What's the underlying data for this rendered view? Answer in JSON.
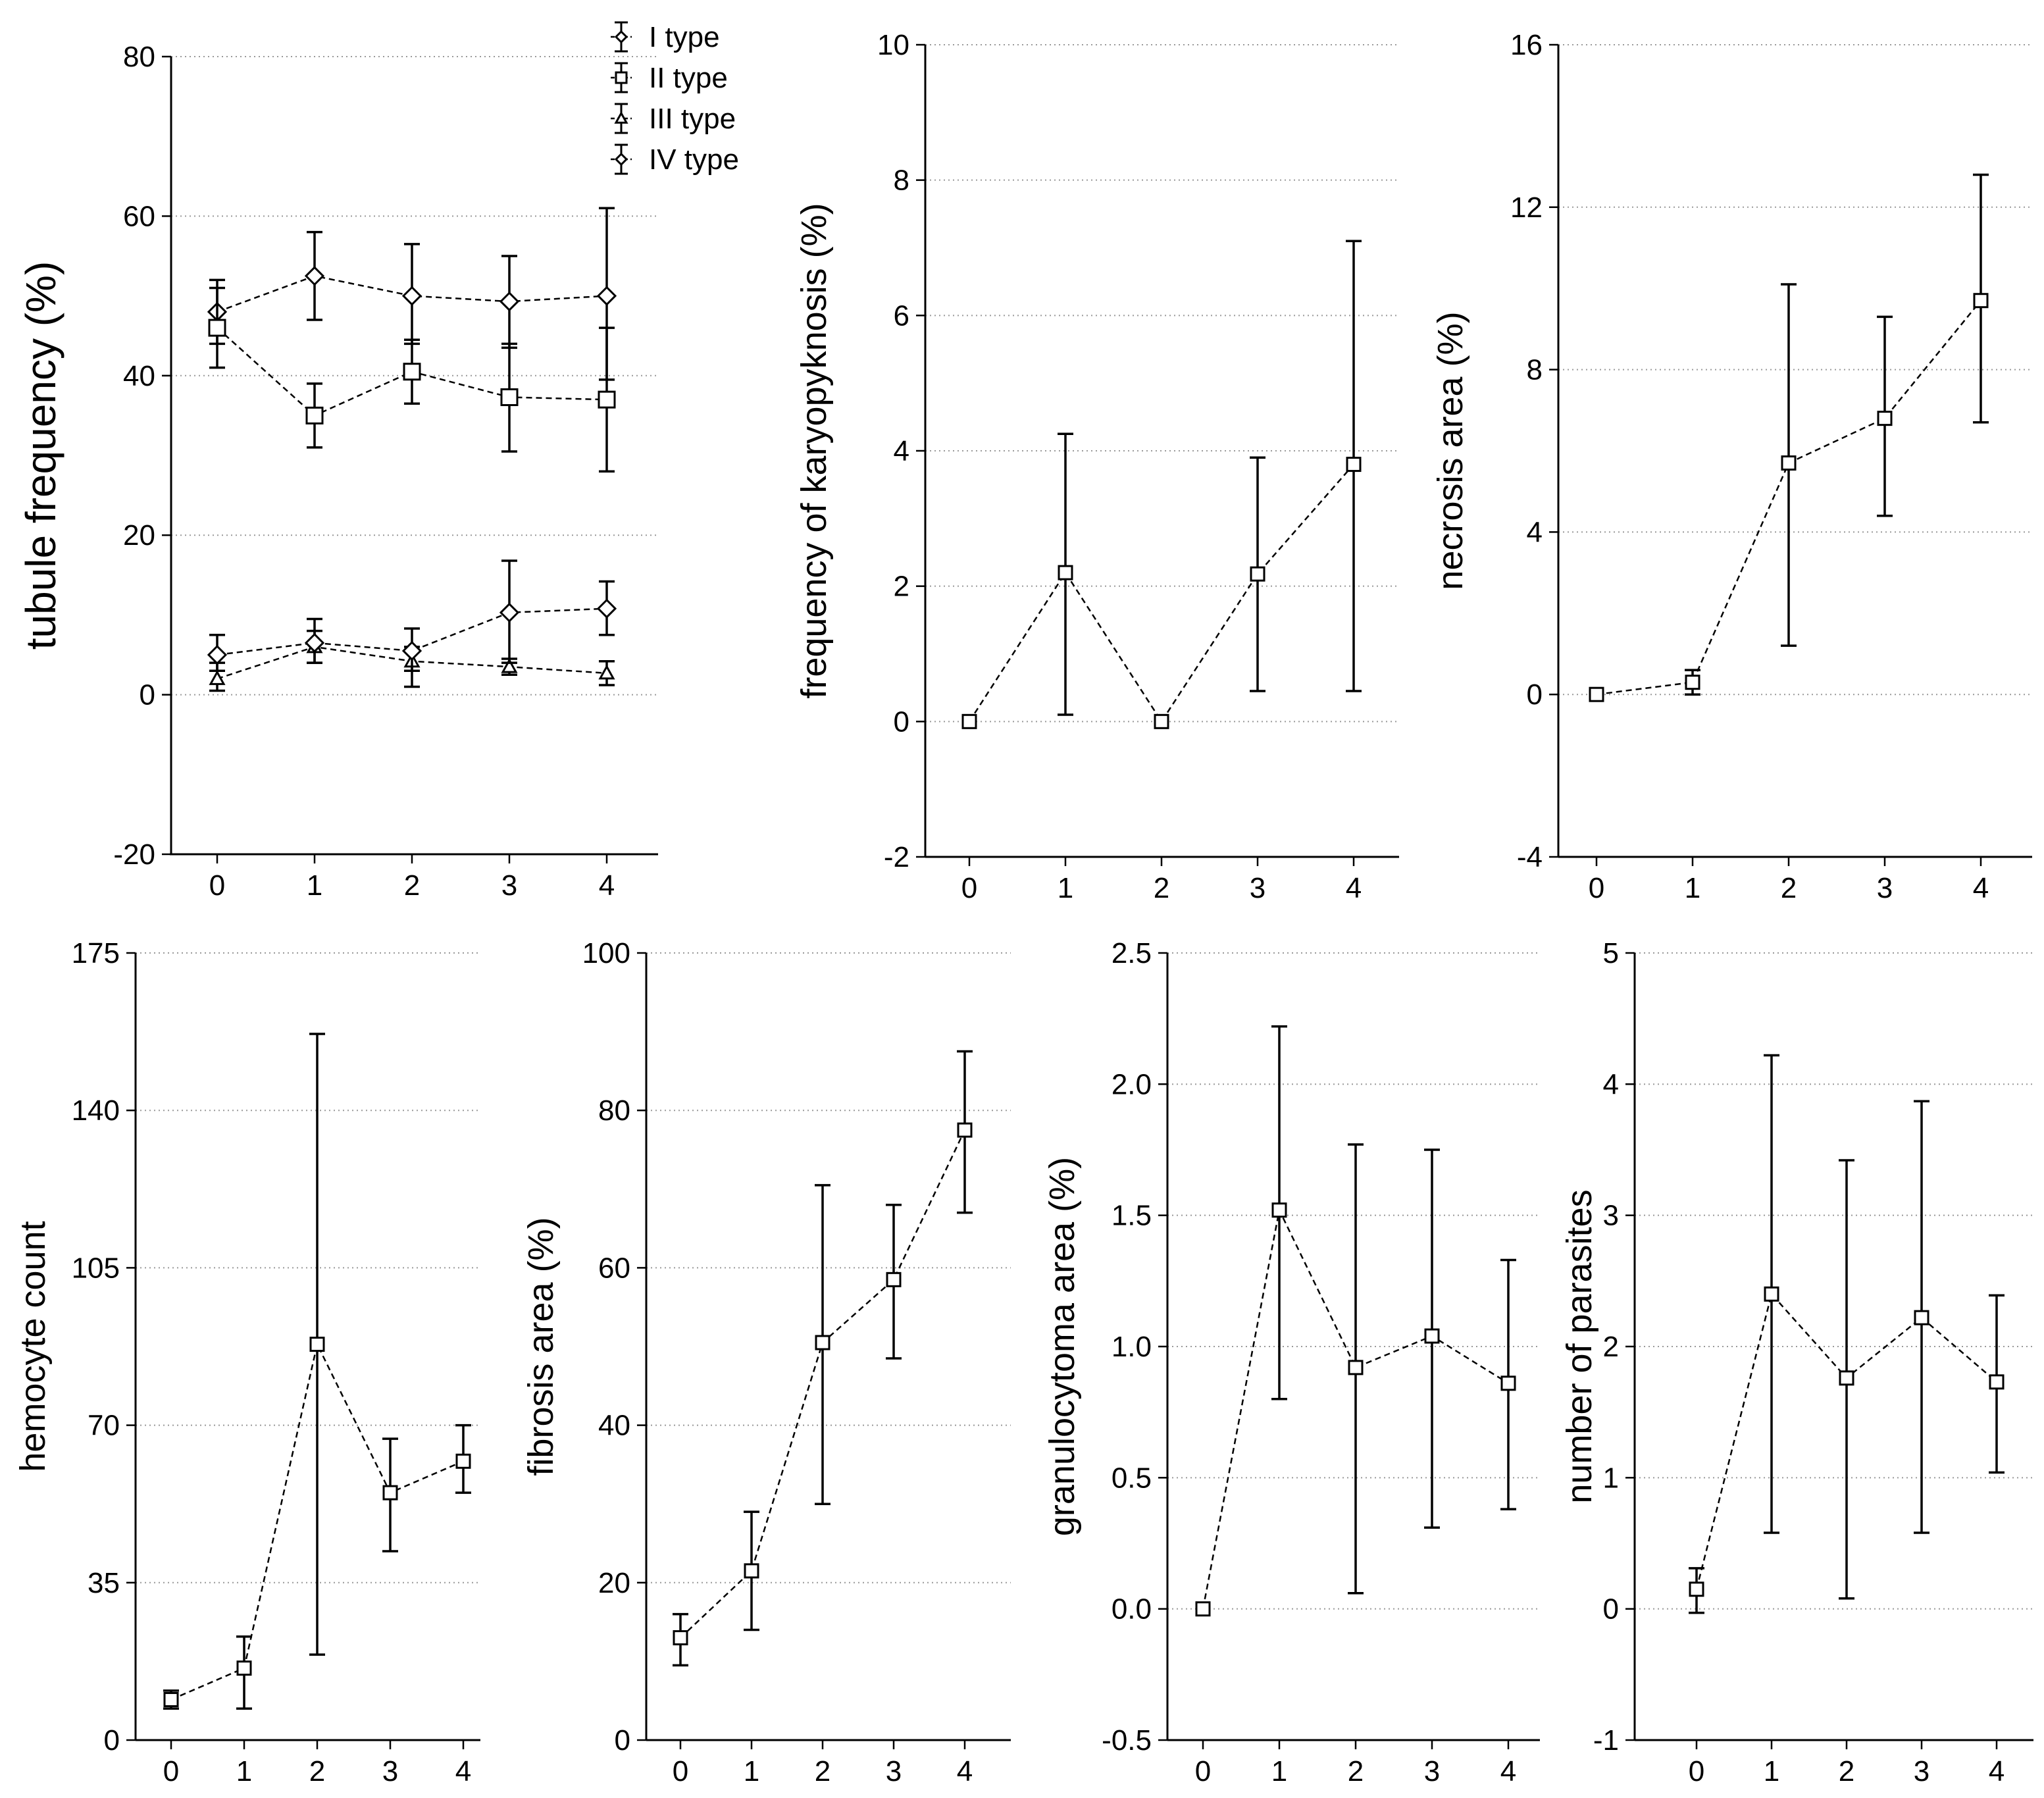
{
  "chart_data": [
    {
      "type": "line",
      "ylabel": "tubule frequency (%)",
      "xlabel": "",
      "categories": [
        "0",
        "1",
        "2",
        "3",
        "4"
      ],
      "ylim": [
        -20,
        80
      ],
      "yticks": [
        "-20",
        "0",
        "20",
        "40",
        "60",
        "80"
      ],
      "grid": "horizontal dotted",
      "legend": [
        "I type",
        "II type",
        "III type",
        "IV type"
      ],
      "series": [
        {
          "name": "I type",
          "marker": "diamond",
          "values": [
            48,
            52.5,
            50,
            49.3,
            50
          ],
          "lower": [
            44,
            47,
            44,
            43.5,
            39.5
          ],
          "upper": [
            52,
            58,
            56.5,
            55,
            61
          ]
        },
        {
          "name": "II type",
          "marker": "square",
          "values": [
            46,
            35,
            40.5,
            37.3,
            37
          ],
          "lower": [
            41,
            31,
            36.5,
            30.5,
            28
          ],
          "upper": [
            51,
            39,
            44.5,
            44,
            46
          ]
        },
        {
          "name": "III type",
          "marker": "triangle",
          "values": [
            2,
            6,
            4.2,
            3.5,
            2.7
          ],
          "lower": [
            0.5,
            4,
            1,
            2.5,
            1.2
          ],
          "upper": [
            4,
            8,
            6,
            4.5,
            4.2
          ]
        },
        {
          "name": "IV type",
          "marker": "diamond",
          "values": [
            5,
            6.5,
            5.5,
            10.3,
            10.8
          ],
          "lower": [
            3,
            4,
            3,
            4,
            7.5
          ],
          "upper": [
            7.5,
            9.5,
            8.3,
            16.8,
            14.2
          ]
        }
      ]
    },
    {
      "type": "line",
      "ylabel": "frequency of karyopyknosis (%)",
      "categories": [
        "0",
        "1",
        "2",
        "3",
        "4"
      ],
      "ylim": [
        -2,
        10
      ],
      "yticks": [
        "-2",
        "0",
        "2",
        "4",
        "6",
        "8",
        "10"
      ],
      "series": [
        {
          "name": "karyopyknosis",
          "marker": "square",
          "values": [
            0,
            2.2,
            0,
            2.18,
            3.8
          ],
          "lower": [
            0,
            0.1,
            0,
            0.45,
            0.45
          ],
          "upper": [
            0,
            4.25,
            0,
            3.9,
            7.1
          ]
        }
      ]
    },
    {
      "type": "line",
      "ylabel": "necrosis area (%)",
      "categories": [
        "0",
        "1",
        "2",
        "3",
        "4"
      ],
      "ylim": [
        -4,
        16
      ],
      "yticks": [
        "-4",
        "0",
        "4",
        "8",
        "12",
        "16"
      ],
      "series": [
        {
          "name": "necrosis",
          "marker": "square",
          "values": [
            0,
            0.3,
            5.7,
            6.8,
            9.7
          ],
          "lower": [
            0,
            0,
            1.2,
            4.4,
            6.7
          ],
          "upper": [
            0,
            0.6,
            10.1,
            9.3,
            12.8
          ]
        }
      ]
    },
    {
      "type": "line",
      "ylabel": "hemocyte count",
      "categories": [
        "0",
        "1",
        "2",
        "3",
        "4"
      ],
      "ylim": [
        0,
        175
      ],
      "yticks": [
        "0",
        "35",
        "70",
        "105",
        "140",
        "175"
      ],
      "series": [
        {
          "name": "hemocyte",
          "marker": "square",
          "values": [
            9,
            16,
            88,
            55,
            62
          ],
          "lower": [
            7,
            7,
            19,
            42,
            55
          ],
          "upper": [
            11,
            23,
            157,
            67,
            70
          ]
        }
      ]
    },
    {
      "type": "line",
      "ylabel": "fibrosis area (%)",
      "categories": [
        "0",
        "1",
        "2",
        "3",
        "4"
      ],
      "ylim": [
        0,
        100
      ],
      "yticks": [
        "0",
        "20",
        "40",
        "60",
        "80",
        "100"
      ],
      "series": [
        {
          "name": "fibrosis",
          "marker": "square",
          "values": [
            13,
            21.5,
            50.5,
            58.5,
            77.5
          ],
          "lower": [
            9.5,
            14,
            30,
            48.5,
            67
          ],
          "upper": [
            16,
            29,
            70.5,
            68,
            87.5
          ]
        }
      ]
    },
    {
      "type": "line",
      "ylabel": "granulocytoma area (%)",
      "categories": [
        "0",
        "1",
        "2",
        "3",
        "4"
      ],
      "ylim": [
        -0.5,
        2.5
      ],
      "yticks": [
        "-0.5",
        "0.0",
        "0.5",
        "1.0",
        "1.5",
        "2.0",
        "2.5"
      ],
      "series": [
        {
          "name": "granulocytoma",
          "marker": "square",
          "values": [
            0,
            1.52,
            0.92,
            1.04,
            0.86
          ],
          "lower": [
            0,
            0.8,
            0.06,
            0.31,
            0.38
          ],
          "upper": [
            0,
            2.22,
            1.77,
            1.75,
            1.33
          ]
        }
      ]
    },
    {
      "type": "line",
      "ylabel": "number of parasites",
      "categories": [
        "0",
        "1",
        "2",
        "3",
        "4"
      ],
      "ylim": [
        -1,
        5
      ],
      "yticks": [
        "-1",
        "0",
        "1",
        "2",
        "3",
        "4",
        "5"
      ],
      "series": [
        {
          "name": "parasites",
          "marker": "square",
          "values": [
            0.15,
            2.4,
            1.76,
            2.22,
            1.73
          ],
          "lower": [
            -0.03,
            0.58,
            0.08,
            0.58,
            1.04
          ],
          "upper": [
            0.31,
            4.22,
            3.42,
            3.87,
            2.39
          ]
        }
      ]
    }
  ]
}
